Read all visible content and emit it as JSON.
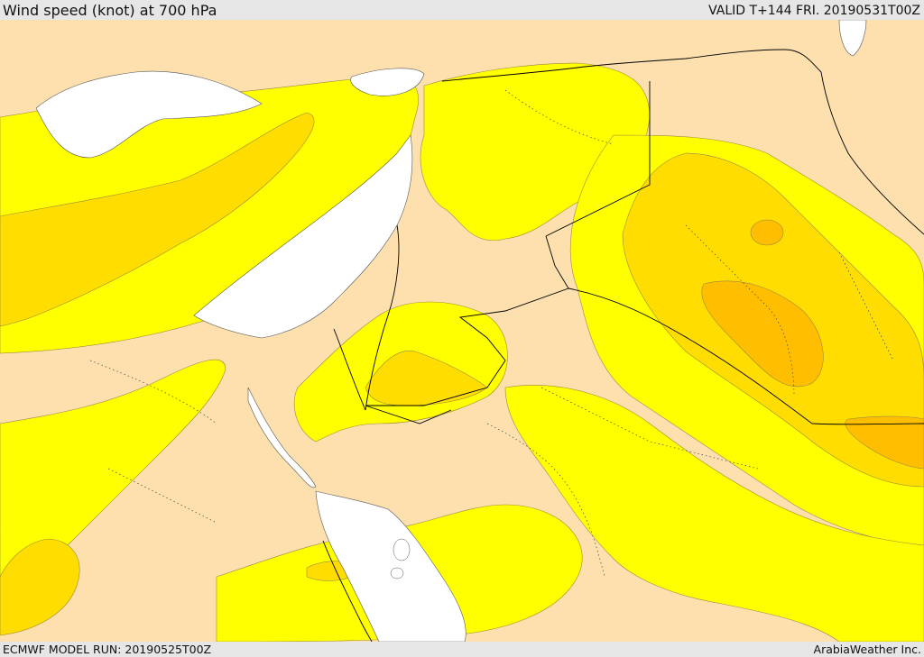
{
  "header": {
    "title": "Wind speed (knot) at 700 hPa",
    "valid": "VALID T+144 FRI. 20190531T00Z"
  },
  "footer": {
    "model_run": "ECMWF MODEL RUN: 20190525T00Z",
    "credit": "ArabiaWeather Inc."
  },
  "colors": {
    "background_low": "#fde0ad",
    "band_yellow": "#ffff00",
    "band_gold": "#ffdd00",
    "band_amber": "#ffbe00",
    "sea": "#ffffff",
    "border": "#000000"
  },
  "icons": {
    "map": "wind-speed-map"
  }
}
